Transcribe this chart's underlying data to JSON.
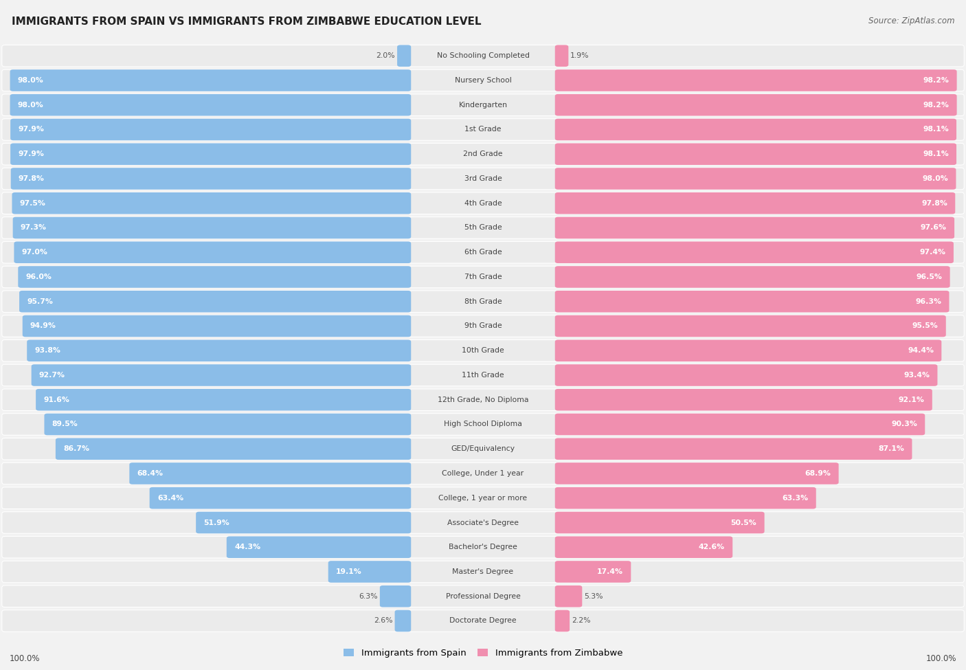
{
  "title": "IMMIGRANTS FROM SPAIN VS IMMIGRANTS FROM ZIMBABWE EDUCATION LEVEL",
  "source": "Source: ZipAtlas.com",
  "categories": [
    "No Schooling Completed",
    "Nursery School",
    "Kindergarten",
    "1st Grade",
    "2nd Grade",
    "3rd Grade",
    "4th Grade",
    "5th Grade",
    "6th Grade",
    "7th Grade",
    "8th Grade",
    "9th Grade",
    "10th Grade",
    "11th Grade",
    "12th Grade, No Diploma",
    "High School Diploma",
    "GED/Equivalency",
    "College, Under 1 year",
    "College, 1 year or more",
    "Associate's Degree",
    "Bachelor's Degree",
    "Master's Degree",
    "Professional Degree",
    "Doctorate Degree"
  ],
  "spain_values": [
    2.0,
    98.0,
    98.0,
    97.9,
    97.9,
    97.8,
    97.5,
    97.3,
    97.0,
    96.0,
    95.7,
    94.9,
    93.8,
    92.7,
    91.6,
    89.5,
    86.7,
    68.4,
    63.4,
    51.9,
    44.3,
    19.1,
    6.3,
    2.6
  ],
  "zimbabwe_values": [
    1.9,
    98.2,
    98.2,
    98.1,
    98.1,
    98.0,
    97.8,
    97.6,
    97.4,
    96.5,
    96.3,
    95.5,
    94.4,
    93.4,
    92.1,
    90.3,
    87.1,
    68.9,
    63.3,
    50.5,
    42.6,
    17.4,
    5.3,
    2.2
  ],
  "spain_color": "#8bbde8",
  "zimbabwe_color": "#f08faf",
  "row_bg_color": "#ebebeb",
  "fig_bg_color": "#f2f2f2",
  "legend_spain": "Immigrants from Spain",
  "legend_zimbabwe": "Immigrants from Zimbabwe",
  "max_val": 100.0,
  "value_color_inside": "#ffffff",
  "value_color_outside": "#555555",
  "cat_label_color": "#444444"
}
